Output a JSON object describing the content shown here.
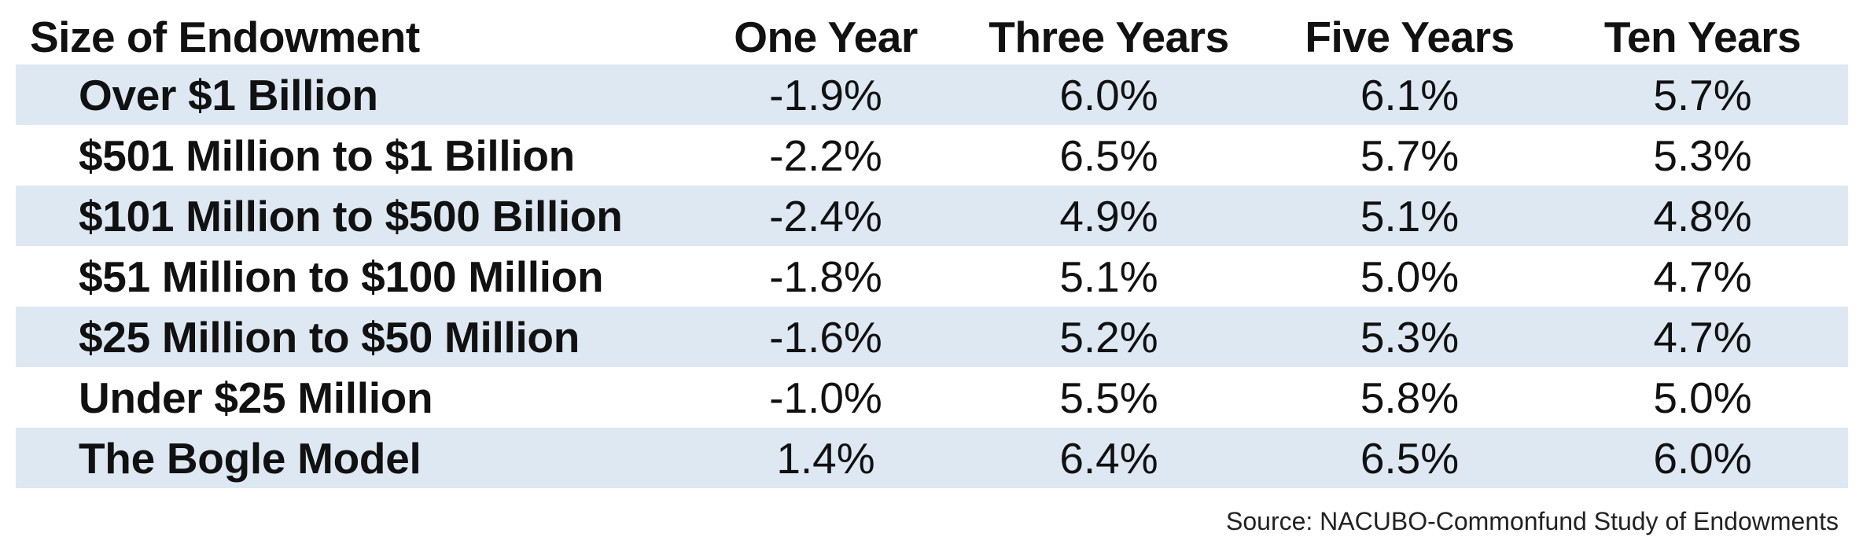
{
  "chart_data": {
    "type": "table",
    "columns": [
      "Size of Endowment",
      "One Year",
      "Three Years",
      "Five Years",
      "Ten Years"
    ],
    "rows": [
      {
        "label": "Over $1 Billion",
        "values": [
          "-1.9%",
          "6.0%",
          "6.1%",
          "5.7%"
        ]
      },
      {
        "label": "$501 Million to $1 Billion",
        "values": [
          "-2.2%",
          "6.5%",
          "5.7%",
          "5.3%"
        ]
      },
      {
        "label": "$101 Million to $500 Billion",
        "values": [
          "-2.4%",
          "4.9%",
          "5.1%",
          "4.8%"
        ]
      },
      {
        "label": "$51 Million to $100 Million",
        "values": [
          "-1.8%",
          "5.1%",
          "5.0%",
          "4.7%"
        ]
      },
      {
        "label": "$25 Million to $50 Million",
        "values": [
          "-1.6%",
          "5.2%",
          "5.3%",
          "4.7%"
        ]
      },
      {
        "label": "Under $25 Million",
        "values": [
          "-1.0%",
          "5.5%",
          "5.8%",
          "5.0%"
        ]
      },
      {
        "label": "The Bogle Model",
        "values": [
          "1.4%",
          "6.4%",
          "6.5%",
          "6.0%"
        ]
      }
    ],
    "source": "Source: NACUBO-Commonfund Study of Endowments",
    "row_shading": [
      "#dde8f3",
      "#ffffff"
    ]
  }
}
